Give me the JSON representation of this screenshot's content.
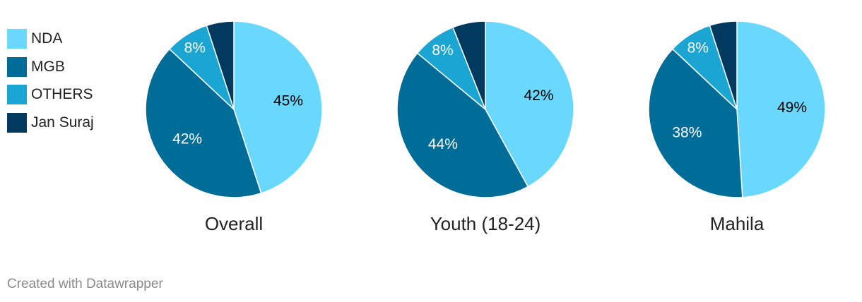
{
  "legend": [
    {
      "label": "NDA",
      "color": "#6ad7fc"
    },
    {
      "label": "MGB",
      "color": "#006c98"
    },
    {
      "label": "OTHERS",
      "color": "#1aa5d3"
    },
    {
      "label": "Jan Suraj",
      "color": "#013a5e"
    }
  ],
  "chart_data": [
    {
      "type": "pie",
      "title": "Overall",
      "labels": [
        "NDA",
        "MGB",
        "OTHERS",
        "Jan Suraj"
      ],
      "values": [
        45,
        42,
        8,
        5
      ],
      "shown_labels": [
        "45%",
        "42%",
        "8%",
        ""
      ]
    },
    {
      "type": "pie",
      "title": "Youth (18-24)",
      "labels": [
        "NDA",
        "MGB",
        "OTHERS",
        "Jan Suraj"
      ],
      "values": [
        42,
        44,
        8,
        6
      ],
      "shown_labels": [
        "42%",
        "44%",
        "8%",
        ""
      ]
    },
    {
      "type": "pie",
      "title": "Mahila",
      "labels": [
        "NDA",
        "MGB",
        "OTHERS",
        "Jan Suraj"
      ],
      "values": [
        49,
        38,
        8,
        5
      ],
      "shown_labels": [
        "49%",
        "38%",
        "8%",
        ""
      ]
    }
  ],
  "footer": "Created with Datawrapper"
}
